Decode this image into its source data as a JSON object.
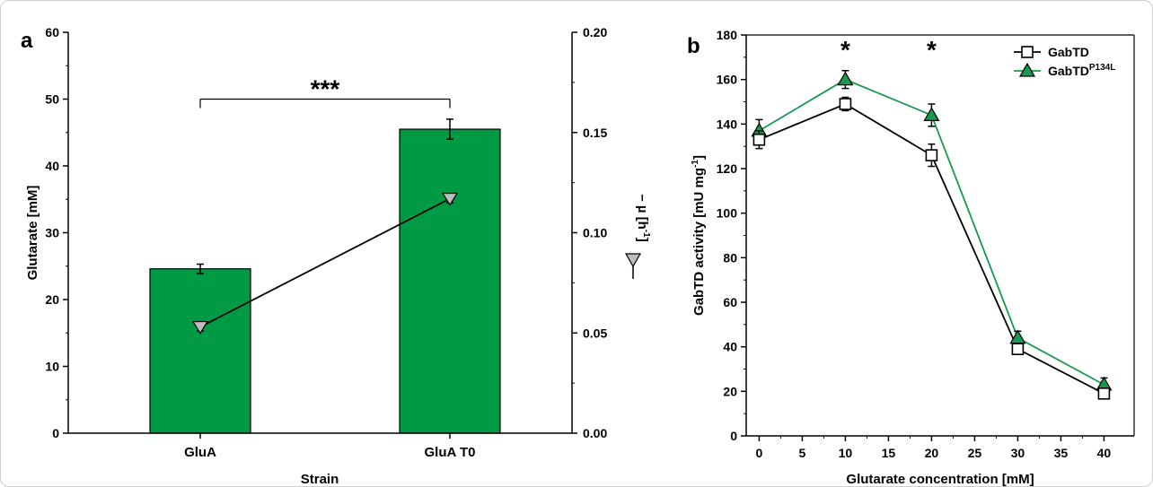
{
  "panels": {
    "a": "a",
    "b": "b"
  },
  "chart_data": [
    {
      "type": "bar",
      "panel": "a",
      "categories": [
        "GluA",
        "GluA T0"
      ],
      "xlabel": "Strain",
      "ylabel": "Glutarate [mM]",
      "y2label_prefix": "– µ [h",
      "y2label_sup": "-1",
      "y2label_suffix": "]",
      "ylim": [
        0,
        60
      ],
      "yticks": [
        "0",
        "10",
        "20",
        "30",
        "40",
        "50",
        "60"
      ],
      "y2lim": [
        0,
        0.2
      ],
      "y2ticks": [
        "0.00",
        "0.05",
        "0.10",
        "0.15",
        "0.20"
      ],
      "bar_color": "#009a44",
      "series": [
        {
          "values": [
            24.6,
            45.5
          ],
          "errors": [
            0.7,
            1.5
          ]
        },
        {
          "axis": "right",
          "values": [
            0.053,
            0.117
          ],
          "errors": [
            0.002,
            0.002
          ]
        }
      ],
      "significance": "***"
    },
    {
      "type": "line",
      "panel": "b",
      "xlabel": "Glutarate concentration [mM]",
      "ylabel_prefix": "GabTD activity [mU mg",
      "ylabel_sup": "-1",
      "ylabel_suffix": "]",
      "xlim": [
        -1.5,
        43.5
      ],
      "ylim": [
        0,
        180
      ],
      "xticks": [
        "0",
        "5",
        "10",
        "15",
        "20",
        "25",
        "30",
        "35",
        "40"
      ],
      "yticks": [
        "0",
        "20",
        "40",
        "60",
        "80",
        "100",
        "120",
        "140",
        "160",
        "180"
      ],
      "series": [
        {
          "name": "GabTD",
          "name_sup": "",
          "color": "#000000",
          "marker": "square",
          "x": [
            0,
            10,
            20,
            30,
            40
          ],
          "values": [
            133,
            149,
            126,
            39,
            19
          ],
          "errors": [
            4,
            3,
            5,
            2,
            2
          ]
        },
        {
          "name": "GabTD",
          "name_sup": "P134L",
          "color": "#1a9850",
          "marker": "triangle",
          "x": [
            0,
            10,
            20,
            30,
            40
          ],
          "values": [
            137,
            160,
            144,
            44,
            23
          ],
          "errors": [
            5,
            4,
            5,
            3,
            3
          ]
        }
      ],
      "annotations": [
        {
          "text": "*",
          "x": 10
        },
        {
          "text": "*",
          "x": 20
        }
      ]
    }
  ]
}
